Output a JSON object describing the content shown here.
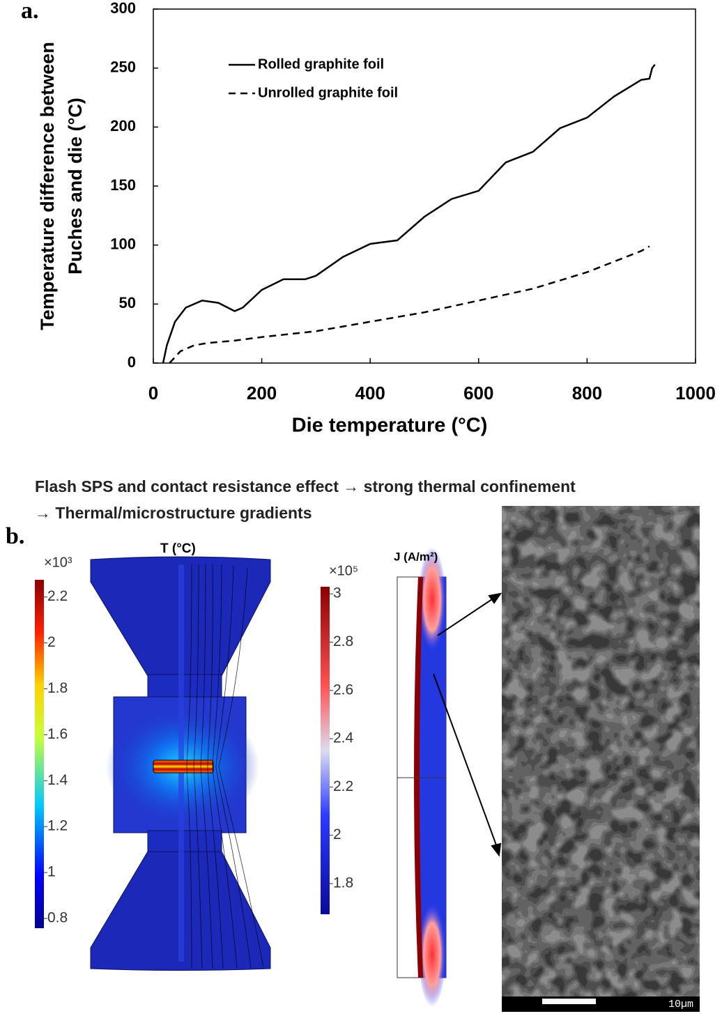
{
  "chart_data": {
    "type": "line",
    "xlabel": "Die temperature (°C)",
    "ylabel": [
      "Temperature difference between",
      "Puches and die (°C)"
    ],
    "xlim": [
      0,
      1000
    ],
    "xticks": [
      0,
      200,
      400,
      600,
      800,
      1000
    ],
    "ylim": [
      0,
      300
    ],
    "yticks": [
      0,
      50,
      100,
      150,
      200,
      250,
      300
    ],
    "grid": false,
    "legend": "upper left",
    "series": [
      {
        "name": "Rolled graphite foil",
        "color": "#000000",
        "line_style": "solid",
        "x": [
          18,
          25,
          40,
          60,
          90,
          120,
          150,
          165,
          200,
          240,
          280,
          300,
          350,
          400,
          450,
          500,
          550,
          600,
          650,
          700,
          750,
          800,
          850,
          900,
          915,
          920,
          925
        ],
        "values": [
          0,
          15,
          35,
          47,
          53,
          51,
          44,
          47,
          62,
          71,
          71,
          74,
          90,
          101,
          104,
          124,
          139,
          146,
          170,
          179,
          199,
          208,
          226,
          240,
          241,
          250,
          253
        ]
      },
      {
        "name": "Unrolled graphite foil",
        "color": "#000000",
        "line_style": "dashed",
        "x": [
          30,
          40,
          50,
          75,
          100,
          150,
          200,
          300,
          400,
          500,
          600,
          700,
          800,
          900,
          915
        ],
        "values": [
          0,
          5,
          10,
          15,
          17,
          19,
          22,
          27,
          35,
          43,
          53,
          63,
          77,
          95,
          99
        ]
      }
    ]
  },
  "panel_labels": [
    "a.",
    "b."
  ],
  "caption": [
    "Flash SPS and contact resistance effect → strong thermal confinement",
    "→ Thermal/microstructure gradients"
  ],
  "simulation": {
    "temperature": {
      "title": "T (°C)",
      "multiplier": "×10³",
      "ticks": [
        0.8,
        1,
        1.2,
        1.4,
        1.6,
        1.8,
        2,
        2.2
      ]
    },
    "current_density": {
      "title": "J (A/m²)",
      "multiplier": "×10⁵",
      "ticks": [
        1.8,
        2,
        2.2,
        2.4,
        2.6,
        2.8,
        3
      ]
    }
  },
  "micrograph": {
    "scale_bar": "10µm"
  }
}
